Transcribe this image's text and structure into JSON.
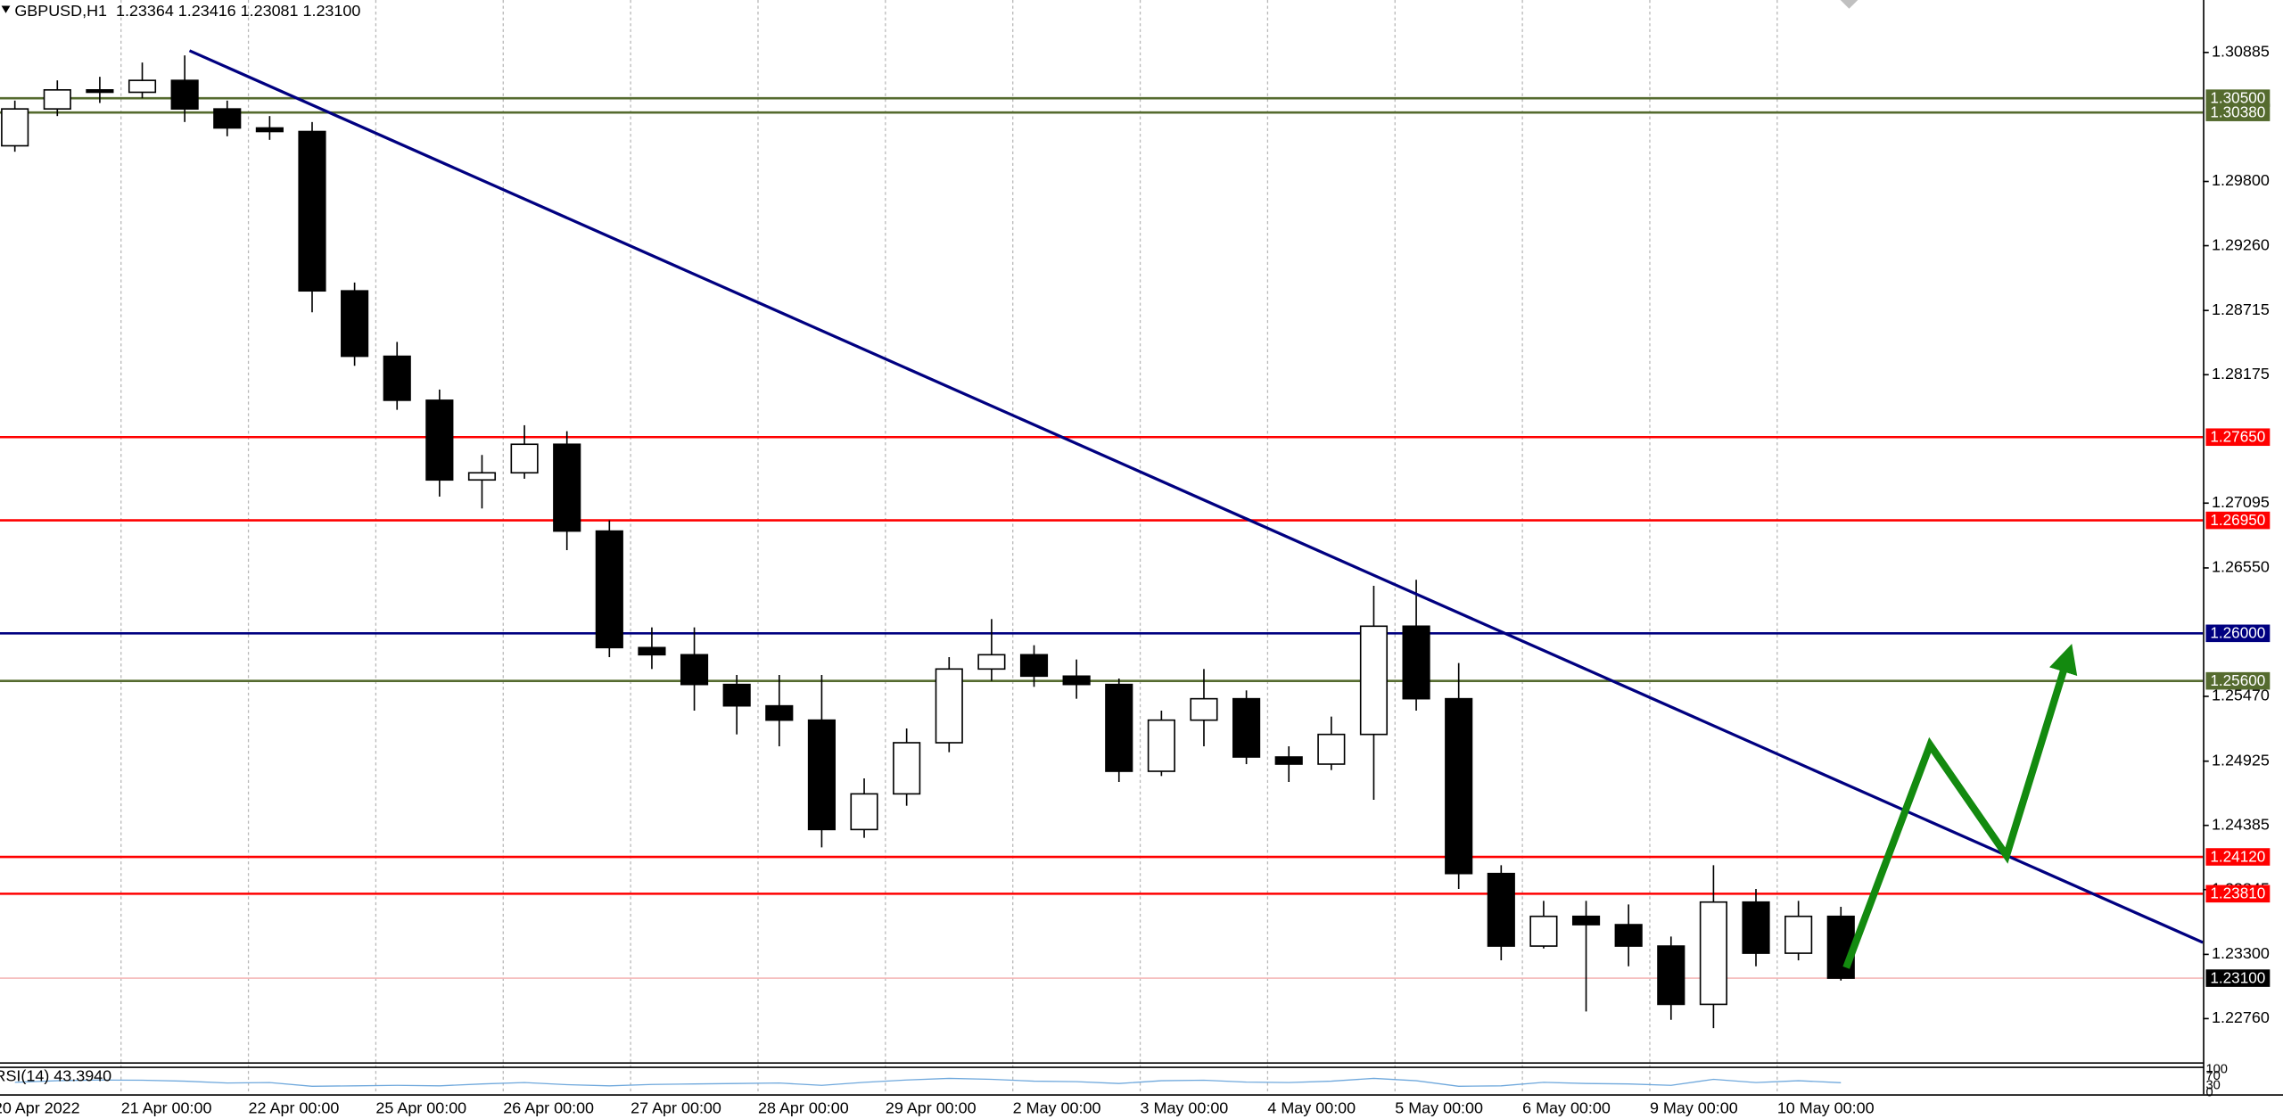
{
  "header": "GBPUSD,H1  1.23364 1.23416 1.23081 1.23100",
  "chart_data": [
    {
      "type": "candlestick",
      "x": [
        -20,
        -12,
        -4,
        4,
        12,
        20,
        28,
        36,
        44,
        52,
        60,
        68,
        76,
        84,
        92,
        100,
        108,
        116,
        124,
        132,
        140,
        148,
        156,
        164,
        172,
        180,
        188,
        196,
        204,
        212,
        220,
        228,
        236,
        244,
        252,
        260,
        268,
        276,
        284,
        292,
        300,
        308,
        316,
        324
      ],
      "open": [
        1.301,
        1.3041,
        1.3057,
        1.3055,
        1.3065,
        1.3041,
        1.3025,
        1.3022,
        1.2888,
        1.2833,
        1.2796,
        1.2729,
        1.2735,
        1.2759,
        1.2686,
        1.2588,
        1.2582,
        1.2557,
        1.2539,
        1.2527,
        1.2435,
        1.2465,
        1.2508,
        1.257,
        1.2582,
        1.2564,
        1.2557,
        1.2484,
        1.2527,
        1.2545,
        1.2496,
        1.249,
        1.2515,
        1.2606,
        1.2545,
        1.2398,
        1.2337,
        1.2362,
        1.2355,
        1.2337,
        1.2288,
        1.2374,
        1.2331,
        1.2362
      ],
      "high": [
        1.3048,
        1.3065,
        1.3068,
        1.308,
        1.3086,
        1.3048,
        1.3035,
        1.303,
        1.2895,
        1.2845,
        1.2805,
        1.275,
        1.2775,
        1.277,
        1.2695,
        1.2605,
        1.2605,
        1.2565,
        1.2565,
        1.2565,
        1.2478,
        1.252,
        1.258,
        1.2612,
        1.259,
        1.2578,
        1.2562,
        1.2535,
        1.257,
        1.2552,
        1.2505,
        1.253,
        1.264,
        1.2645,
        1.2575,
        1.2405,
        1.2375,
        1.2375,
        1.2372,
        1.2345,
        1.2405,
        1.2385,
        1.2375,
        1.237
      ],
      "low": [
        1.3005,
        1.3035,
        1.3046,
        1.305,
        1.303,
        1.3018,
        1.3015,
        1.287,
        1.2825,
        1.2788,
        1.2715,
        1.2705,
        1.273,
        1.267,
        1.258,
        1.257,
        1.2535,
        1.2515,
        1.2505,
        1.242,
        1.2428,
        1.2455,
        1.25,
        1.256,
        1.2555,
        1.2545,
        1.2475,
        1.248,
        1.2505,
        1.249,
        1.2475,
        1.2485,
        1.246,
        1.2535,
        1.2385,
        1.2325,
        1.2335,
        1.2282,
        1.232,
        1.2275,
        1.2268,
        1.232,
        1.2325,
        1.2308
      ],
      "close": [
        1.3041,
        1.3057,
        1.3055,
        1.3065,
        1.3041,
        1.3025,
        1.3022,
        1.2888,
        1.2833,
        1.2796,
        1.2729,
        1.2735,
        1.2759,
        1.2686,
        1.2588,
        1.2582,
        1.2557,
        1.2539,
        1.2527,
        1.2435,
        1.2465,
        1.2508,
        1.257,
        1.2582,
        1.2564,
        1.2557,
        1.2484,
        1.2527,
        1.2545,
        1.2496,
        1.249,
        1.2515,
        1.2606,
        1.2545,
        1.2398,
        1.2337,
        1.2362,
        1.2355,
        1.2337,
        1.2288,
        1.2374,
        1.2331,
        1.2362,
        1.231
      ],
      "up_color": "#ffffff",
      "down_color": "#000000",
      "xlim": [
        -22.8,
        392.2
      ],
      "xticks": [
        {
          "value": -24,
          "label": "20 Apr 2022"
        },
        {
          "value": 0,
          "label": "21 Apr 00:00"
        },
        {
          "value": 24,
          "label": "22 Apr 00:00"
        },
        {
          "value": 48,
          "label": "25 Apr 00:00"
        },
        {
          "value": 72,
          "label": "26 Apr 00:00"
        },
        {
          "value": 96,
          "label": "27 Apr 00:00"
        },
        {
          "value": 120,
          "label": "28 Apr 00:00"
        },
        {
          "value": 144,
          "label": "29 Apr 00:00"
        },
        {
          "value": 168,
          "label": "2 May 00:00"
        },
        {
          "value": 192,
          "label": "3 May 00:00"
        },
        {
          "value": 216,
          "label": "4 May 00:00"
        },
        {
          "value": 240,
          "label": "5 May 00:00"
        },
        {
          "value": 264,
          "label": "6 May 00:00"
        },
        {
          "value": 288,
          "label": "9 May 00:00"
        },
        {
          "value": 312,
          "label": "10 May 00:00"
        }
      ],
      "ylim": [
        1.22393,
        1.31326
      ],
      "yticks": [
        {
          "value": 1.30885,
          "label": "1.30885"
        },
        {
          "value": 1.298,
          "label": "1.29800"
        },
        {
          "value": 1.2926,
          "label": "1.29260"
        },
        {
          "value": 1.28715,
          "label": "1.28715"
        },
        {
          "value": 1.28175,
          "label": "1.28175"
        },
        {
          "value": 1.27095,
          "label": "1.27095"
        },
        {
          "value": 1.2655,
          "label": "1.26550"
        },
        {
          "value": 1.2547,
          "label": "1.25470"
        },
        {
          "value": 1.24925,
          "label": "1.24925"
        },
        {
          "value": 1.24385,
          "label": "1.24385"
        },
        {
          "value": 1.23845,
          "label": "1.23845"
        },
        {
          "value": 1.233,
          "label": "1.23300"
        },
        {
          "value": 1.2276,
          "label": "1.22760"
        }
      ],
      "levels": [
        {
          "value": 1.305,
          "label": "1.30500",
          "color": "#556b2f"
        },
        {
          "value": 1.3038,
          "label": "1.30380",
          "color": "#556b2f"
        },
        {
          "value": 1.2765,
          "label": "1.27650",
          "color": "#ff0000"
        },
        {
          "value": 1.2695,
          "label": "1.26950",
          "color": "#ff0000"
        },
        {
          "value": 1.26,
          "label": "1.26000",
          "color": "#000080"
        },
        {
          "value": 1.256,
          "label": "1.25600",
          "color": "#556b2f"
        },
        {
          "value": 1.2412,
          "label": "1.24120",
          "color": "#ff0000"
        },
        {
          "value": 1.2381,
          "label": "1.23810",
          "color": "#ff0000"
        },
        {
          "value": 1.231,
          "label": "1.23100",
          "color": "#000000"
        }
      ],
      "trendline": {
        "x": [
          12.9,
          392.2
        ],
        "y": [
          1.309,
          1.234
        ],
        "color": "#000080"
      },
      "projection": {
        "x": [
          325,
          340.8,
          355.2,
          366.7
        ],
        "y": [
          1.23188,
          1.25061,
          1.24131,
          1.25795
        ],
        "color": "#138a0f"
      },
      "grid": true
    },
    {
      "type": "line",
      "label": "RSI(14) 43.3940",
      "x": [
        -20,
        -12,
        -4,
        4,
        12,
        20,
        28,
        36,
        44,
        52,
        60,
        68,
        76,
        84,
        92,
        100,
        108,
        116,
        124,
        132,
        140,
        148,
        156,
        164,
        172,
        180,
        188,
        196,
        204,
        212,
        220,
        228,
        236,
        244,
        252,
        260,
        268,
        276,
        284,
        292,
        300,
        308,
        316,
        324
      ],
      "values": [
        45,
        52,
        55,
        54,
        50,
        42,
        44,
        28,
        30,
        32,
        30,
        38,
        44,
        35,
        30,
        36,
        38,
        40,
        42,
        32,
        45,
        55,
        62,
        58,
        50,
        48,
        40,
        52,
        54,
        46,
        44,
        50,
        62,
        52,
        28,
        30,
        45,
        40,
        38,
        32,
        58,
        44,
        52,
        43.394
      ],
      "color": "#6fa8dc",
      "ylim": [
        0,
        100
      ],
      "yticks": [
        0,
        30,
        70,
        100
      ]
    }
  ]
}
